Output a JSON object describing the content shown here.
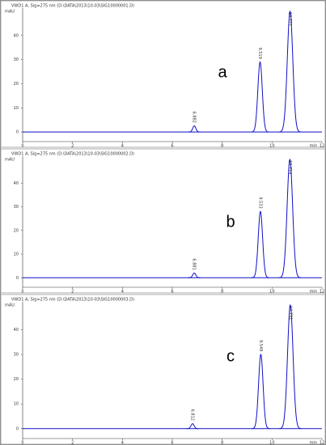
{
  "chart_data": [
    {
      "type": "line",
      "title": "VWD1 A, Sig=275 nm (D:\\DATA\\2013\\10-03\\SIG10000001.D)",
      "label": "a",
      "y_label": "mAU",
      "x_label": "min",
      "xlim": [
        0,
        12
      ],
      "xticks": [
        0,
        2,
        4,
        6,
        8,
        10,
        12
      ],
      "ylim": [
        -4,
        50
      ],
      "yticks": [
        0,
        10,
        20,
        30,
        40
      ],
      "series": [
        {
          "name": "VWD1 A",
          "color": "#1010c8",
          "x": [
            6.882,
            9.519,
            10.721
          ],
          "values": [
            2.5,
            29,
            50
          ]
        }
      ]
    },
    {
      "type": "line",
      "title": "VWD1 A, Sig=275 nm (D:\\DATA\\2013\\10-03\\SIG10000002.D)",
      "label": "b",
      "y_label": "mAU",
      "x_label": "min",
      "xlim": [
        0,
        12
      ],
      "xticks": [
        0,
        2,
        4,
        6,
        8,
        10,
        12
      ],
      "ylim": [
        -4,
        50
      ],
      "yticks": [
        0,
        10,
        20,
        30,
        40
      ],
      "series": [
        {
          "name": "VWD1 A",
          "color": "#1010c8",
          "x": [
            6.881,
            9.533,
            10.714
          ],
          "values": [
            2,
            28,
            50
          ]
        }
      ]
    },
    {
      "type": "line",
      "title": "VWD1 A, Sig=275 nm (D:\\DATA\\2013\\10-03\\SIG10000003.D)",
      "label": "c",
      "y_label": "mAU",
      "x_label": "min",
      "xlim": [
        0,
        12
      ],
      "xticks": [
        0,
        2,
        4,
        6,
        8,
        10,
        12
      ],
      "ylim": [
        -4,
        50
      ],
      "yticks": [
        0,
        10,
        20,
        30,
        40
      ],
      "series": [
        {
          "name": "VWD1 A",
          "color": "#1010c8",
          "x": [
            6.812,
            9.549,
            10.731
          ],
          "values": [
            2,
            30,
            50
          ]
        }
      ]
    }
  ]
}
